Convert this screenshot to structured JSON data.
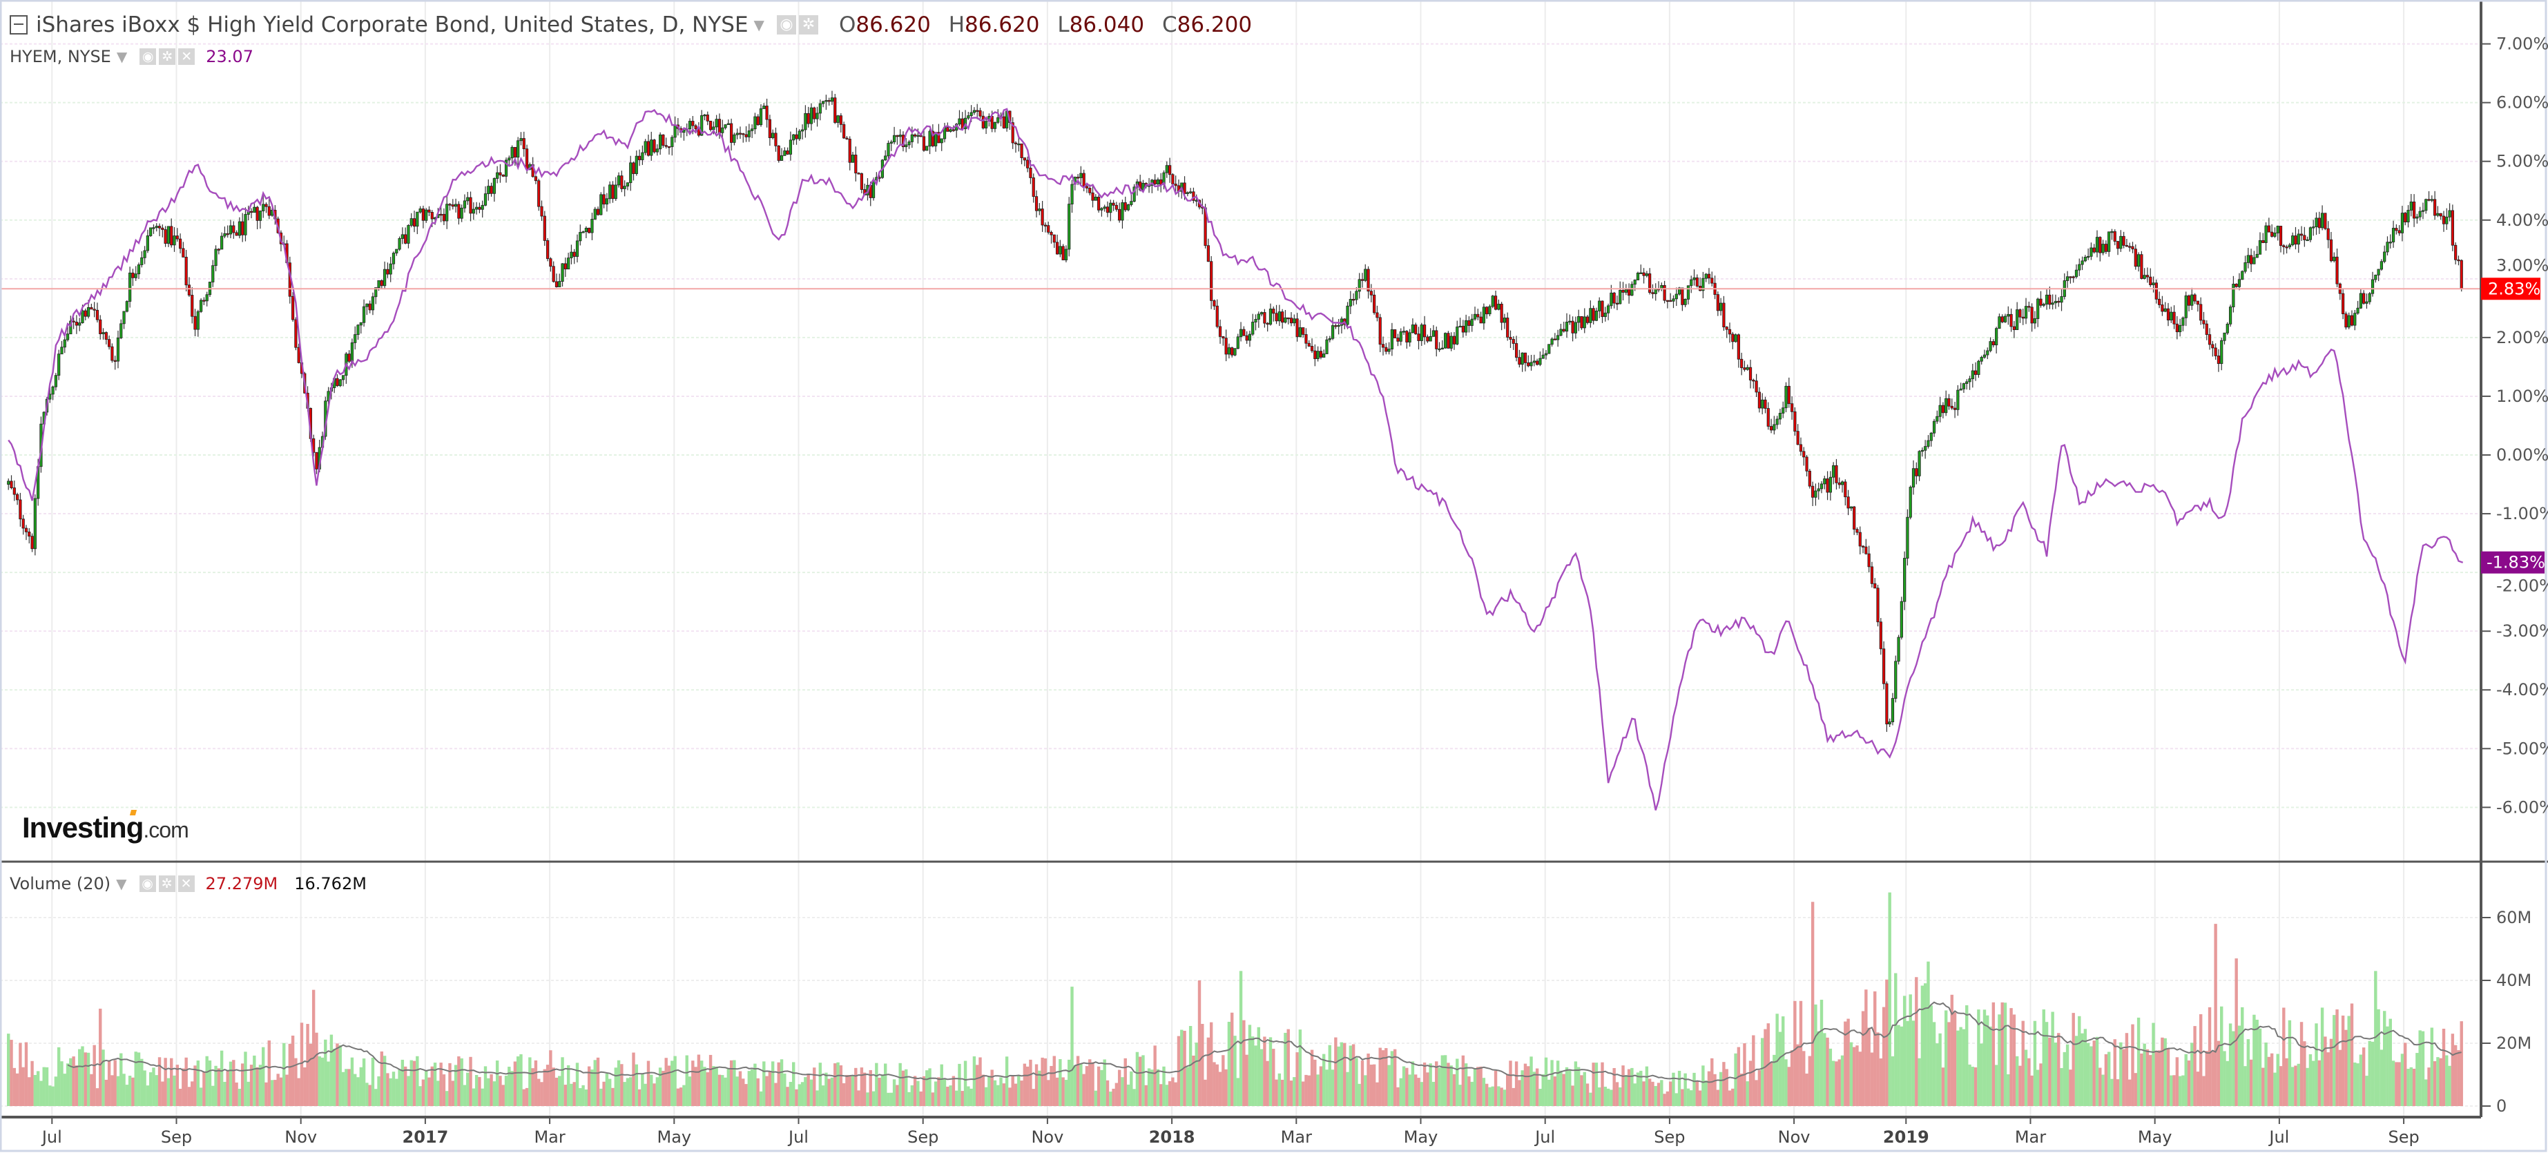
{
  "header": {
    "title": "iShares iBoxx $ High Yield Corporate Bond, United States, D, NYSE",
    "o_label": "O",
    "o": "86.620",
    "h_label": "H",
    "h": "86.620",
    "l_label": "L",
    "l": "86.040",
    "c_label": "C",
    "c": "86.200"
  },
  "compare": {
    "symbol": "HYEM, NYSE",
    "value": "23.07"
  },
  "volume": {
    "label": "Volume (20)",
    "value": "27.279M",
    "ma_value": "16.762M"
  },
  "logo": "Investing.com",
  "colors": {
    "up": "#1fa01f",
    "down": "#e00000",
    "vol_up": "#9ee39e",
    "vol_down": "#e79a9a",
    "compare": "#a64dbd",
    "last_label": "#ff0000",
    "compare_label": "#8b0a8b"
  },
  "chart_data": [
    {
      "type": "candlestick",
      "name": "HYG % change",
      "x_unit": "months since Jul 2016",
      "yaxis_ticks": [
        "7.00%",
        "6.00%",
        "5.00%",
        "4.00%",
        "3.00%",
        "2.00%",
        "1.00%",
        "0.00%",
        "-1.00%",
        "-2.00%",
        "-3.00%",
        "-4.00%",
        "-5.00%",
        "-6.00%"
      ],
      "ylim": [
        -7,
        7.4
      ],
      "last_value_label": "2.83%",
      "last_value": 2.83,
      "points": [
        [
          -0.7,
          -0.5
        ],
        [
          -0.31,
          -1.5
        ],
        [
          -0.18,
          0.5
        ],
        [
          0.21,
          2.0
        ],
        [
          0.6,
          2.6
        ],
        [
          0.99,
          1.6
        ],
        [
          1.25,
          3.0
        ],
        [
          1.64,
          3.9
        ],
        [
          2.04,
          3.6
        ],
        [
          2.3,
          2.2
        ],
        [
          2.69,
          3.6
        ],
        [
          3.08,
          3.9
        ],
        [
          3.47,
          4.3
        ],
        [
          3.73,
          3.6
        ],
        [
          3.99,
          1.4
        ],
        [
          4.26,
          -0.3
        ],
        [
          4.39,
          0.8
        ],
        [
          4.78,
          1.7
        ],
        [
          5.04,
          2.5
        ],
        [
          5.43,
          3.3
        ],
        [
          5.9,
          4.1
        ],
        [
          6.48,
          4.1
        ],
        [
          7.0,
          4.4
        ],
        [
          7.52,
          5.3
        ],
        [
          7.78,
          4.7
        ],
        [
          8.04,
          2.9
        ],
        [
          8.43,
          3.6
        ],
        [
          8.83,
          4.3
        ],
        [
          9.22,
          4.7
        ],
        [
          9.61,
          5.3
        ],
        [
          10.13,
          5.5
        ],
        [
          10.65,
          5.7
        ],
        [
          11.04,
          5.4
        ],
        [
          11.44,
          5.8
        ],
        [
          11.7,
          5.1
        ],
        [
          12.22,
          5.8
        ],
        [
          12.48,
          6.1
        ],
        [
          12.74,
          5.3
        ],
        [
          13.13,
          4.4
        ],
        [
          13.52,
          5.4
        ],
        [
          13.92,
          5.3
        ],
        [
          14.31,
          5.5
        ],
        [
          14.83,
          5.7
        ],
        [
          15.35,
          5.7
        ],
        [
          15.61,
          5.0
        ],
        [
          16.0,
          3.7
        ],
        [
          16.27,
          3.3
        ],
        [
          16.4,
          4.8
        ],
        [
          16.79,
          4.3
        ],
        [
          17.18,
          4.1
        ],
        [
          17.57,
          4.7
        ],
        [
          17.96,
          4.8
        ],
        [
          18.49,
          4.1
        ],
        [
          18.62,
          2.8
        ],
        [
          18.88,
          1.7
        ],
        [
          19.27,
          2.2
        ],
        [
          19.79,
          2.4
        ],
        [
          20.31,
          1.7
        ],
        [
          20.7,
          2.2
        ],
        [
          21.1,
          3.2
        ],
        [
          21.36,
          1.9
        ],
        [
          21.88,
          2.1
        ],
        [
          22.4,
          1.9
        ],
        [
          22.79,
          2.2
        ],
        [
          23.19,
          2.6
        ],
        [
          23.71,
          1.4
        ],
        [
          24.23,
          2.1
        ],
        [
          24.88,
          2.5
        ],
        [
          25.54,
          3.0
        ],
        [
          26.06,
          2.6
        ],
        [
          26.58,
          3.0
        ],
        [
          27.1,
          1.8
        ],
        [
          27.62,
          0.5
        ],
        [
          27.89,
          1.1
        ],
        [
          28.28,
          -0.8
        ],
        [
          28.67,
          -0.3
        ],
        [
          29.06,
          -1.4
        ],
        [
          29.32,
          -2.5
        ],
        [
          29.5,
          -4.7
        ],
        [
          29.71,
          -3.0
        ],
        [
          29.84,
          -0.6
        ],
        [
          30.23,
          0.6
        ],
        [
          30.76,
          1.1
        ],
        [
          31.28,
          2.2
        ],
        [
          31.8,
          2.4
        ],
        [
          32.32,
          2.8
        ],
        [
          32.85,
          3.6
        ],
        [
          33.37,
          3.7
        ],
        [
          33.63,
          3.0
        ],
        [
          34.15,
          2.2
        ],
        [
          34.41,
          2.8
        ],
        [
          34.8,
          1.5
        ],
        [
          35.07,
          2.8
        ],
        [
          35.33,
          3.3
        ],
        [
          35.59,
          3.9
        ],
        [
          35.98,
          3.6
        ],
        [
          36.5,
          4.0
        ],
        [
          36.76,
          2.9
        ],
        [
          36.89,
          2.2
        ],
        [
          37.28,
          2.9
        ],
        [
          37.55,
          3.6
        ],
        [
          37.81,
          4.1
        ],
        [
          38.2,
          4.3
        ],
        [
          38.54,
          4.0
        ],
        [
          38.75,
          2.83
        ]
      ]
    },
    {
      "type": "line",
      "name": "HYEM % change",
      "last_value_label": "-1.83%",
      "last_value": -1.83,
      "points": [
        [
          -0.7,
          0.28
        ],
        [
          -0.31,
          -0.83
        ],
        [
          0.08,
          1.94
        ],
        [
          0.47,
          2.49
        ],
        [
          0.99,
          3.04
        ],
        [
          1.51,
          3.87
        ],
        [
          2.04,
          4.43
        ],
        [
          2.3,
          4.98
        ],
        [
          2.56,
          4.43
        ],
        [
          3.08,
          4.15
        ],
        [
          3.47,
          4.43
        ],
        [
          3.86,
          3.04
        ],
        [
          4.26,
          -0.55
        ],
        [
          4.52,
          1.38
        ],
        [
          5.04,
          1.66
        ],
        [
          5.43,
          2.21
        ],
        [
          5.95,
          3.6
        ],
        [
          6.48,
          4.7
        ],
        [
          7.0,
          4.98
        ],
        [
          7.52,
          4.98
        ],
        [
          8.04,
          4.7
        ],
        [
          8.3,
          4.98
        ],
        [
          8.83,
          5.53
        ],
        [
          9.22,
          5.26
        ],
        [
          9.61,
          5.95
        ],
        [
          10.13,
          5.53
        ],
        [
          10.65,
          5.53
        ],
        [
          11.17,
          4.7
        ],
        [
          11.7,
          3.6
        ],
        [
          12.09,
          4.7
        ],
        [
          12.48,
          4.7
        ],
        [
          12.87,
          4.15
        ],
        [
          13.26,
          4.7
        ],
        [
          13.79,
          5.53
        ],
        [
          14.31,
          5.53
        ],
        [
          14.83,
          5.67
        ],
        [
          15.35,
          5.81
        ],
        [
          15.87,
          4.7
        ],
        [
          16.4,
          4.7
        ],
        [
          16.92,
          4.43
        ],
        [
          17.44,
          4.56
        ],
        [
          17.96,
          4.56
        ],
        [
          18.49,
          4.29
        ],
        [
          18.88,
          3.32
        ],
        [
          19.27,
          3.32
        ],
        [
          19.79,
          2.77
        ],
        [
          20.31,
          2.35
        ],
        [
          20.83,
          2.21
        ],
        [
          21.36,
          1.11
        ],
        [
          21.62,
          -0.28
        ],
        [
          22.01,
          -0.55
        ],
        [
          22.4,
          -0.83
        ],
        [
          22.79,
          -1.66
        ],
        [
          23.06,
          -2.77
        ],
        [
          23.45,
          -2.35
        ],
        [
          23.84,
          -3.04
        ],
        [
          24.23,
          -2.21
        ],
        [
          24.49,
          -1.66
        ],
        [
          24.75,
          -2.77
        ],
        [
          25.01,
          -5.53
        ],
        [
          25.41,
          -4.43
        ],
        [
          25.8,
          -6.09
        ],
        [
          26.06,
          -4.43
        ],
        [
          26.45,
          -2.77
        ],
        [
          26.84,
          -3.04
        ],
        [
          27.23,
          -2.77
        ],
        [
          27.62,
          -3.46
        ],
        [
          27.89,
          -2.77
        ],
        [
          28.28,
          -3.87
        ],
        [
          28.54,
          -4.84
        ],
        [
          28.93,
          -4.7
        ],
        [
          29.32,
          -4.98
        ],
        [
          29.58,
          -5.12
        ],
        [
          29.84,
          -3.87
        ],
        [
          30.23,
          -2.77
        ],
        [
          30.49,
          -1.94
        ],
        [
          30.88,
          -1.11
        ],
        [
          31.28,
          -1.66
        ],
        [
          31.67,
          -0.83
        ],
        [
          32.06,
          -1.66
        ],
        [
          32.32,
          0.28
        ],
        [
          32.59,
          -0.83
        ],
        [
          32.98,
          -0.41
        ],
        [
          33.37,
          -0.55
        ],
        [
          33.89,
          -0.55
        ],
        [
          34.15,
          -1.11
        ],
        [
          34.67,
          -0.83
        ],
        [
          34.93,
          -1.11
        ],
        [
          35.2,
          0.55
        ],
        [
          35.46,
          1.11
        ],
        [
          35.72,
          1.38
        ],
        [
          36.11,
          1.52
        ],
        [
          36.37,
          1.38
        ],
        [
          36.68,
          1.8
        ],
        [
          36.89,
          0.55
        ],
        [
          37.15,
          -1.38
        ],
        [
          37.41,
          -1.94
        ],
        [
          37.81,
          -3.6
        ],
        [
          38.07,
          -1.66
        ],
        [
          38.46,
          -1.38
        ],
        [
          38.75,
          -1.83
        ]
      ]
    },
    {
      "type": "bar",
      "name": "Volume",
      "yaxis_ticks": [
        "60M",
        "40M",
        "20M",
        "0"
      ],
      "ylim": [
        0,
        75
      ],
      "unit": "M",
      "ma_period": 20,
      "baseline": [
        [
          -0.75,
          15
        ],
        [
          1,
          12
        ],
        [
          2,
          10
        ],
        [
          3,
          12
        ],
        [
          4,
          18
        ],
        [
          5,
          12
        ],
        [
          6,
          10
        ],
        [
          8,
          12
        ],
        [
          10,
          11
        ],
        [
          12,
          10
        ],
        [
          14,
          9
        ],
        [
          16,
          12
        ],
        [
          17,
          10
        ],
        [
          19,
          20
        ],
        [
          20,
          16
        ],
        [
          22,
          12
        ],
        [
          24,
          10
        ],
        [
          26,
          8
        ],
        [
          27,
          11
        ],
        [
          28,
          22
        ],
        [
          29.5,
          28
        ],
        [
          30.5,
          26
        ],
        [
          32,
          20
        ],
        [
          34,
          18
        ],
        [
          35,
          22
        ],
        [
          36,
          20
        ],
        [
          37,
          22
        ],
        [
          38,
          18
        ],
        [
          38.75,
          16
        ]
      ],
      "spikes": [
        [
          0.78,
          31
        ],
        [
          4.2,
          37
        ],
        [
          16.4,
          38
        ],
        [
          18.45,
          40
        ],
        [
          19.1,
          43
        ],
        [
          28.3,
          65
        ],
        [
          29.55,
          68
        ],
        [
          30.15,
          46
        ],
        [
          34.8,
          58
        ],
        [
          35.1,
          47
        ],
        [
          37.35,
          43
        ],
        [
          38.72,
          27
        ]
      ]
    }
  ],
  "xaxis": {
    "ticks": [
      {
        "m": 0,
        "label": "Jul"
      },
      {
        "m": 2,
        "label": "Sep"
      },
      {
        "m": 4,
        "label": "Nov"
      },
      {
        "m": 6,
        "label": "2017",
        "bold": true
      },
      {
        "m": 8,
        "label": "Mar"
      },
      {
        "m": 10,
        "label": "May"
      },
      {
        "m": 12,
        "label": "Jul"
      },
      {
        "m": 14,
        "label": "Sep"
      },
      {
        "m": 16,
        "label": "Nov"
      },
      {
        "m": 18,
        "label": "2018",
        "bold": true
      },
      {
        "m": 20,
        "label": "Mar"
      },
      {
        "m": 22,
        "label": "May"
      },
      {
        "m": 24,
        "label": "Jul"
      },
      {
        "m": 26,
        "label": "Sep"
      },
      {
        "m": 28,
        "label": "Nov"
      },
      {
        "m": 29.8,
        "label": "2019",
        "bold": true
      },
      {
        "m": 31.8,
        "label": "Mar"
      },
      {
        "m": 33.8,
        "label": "May"
      },
      {
        "m": 35.8,
        "label": "Jul"
      },
      {
        "m": 37.8,
        "label": "Sep"
      }
    ]
  }
}
